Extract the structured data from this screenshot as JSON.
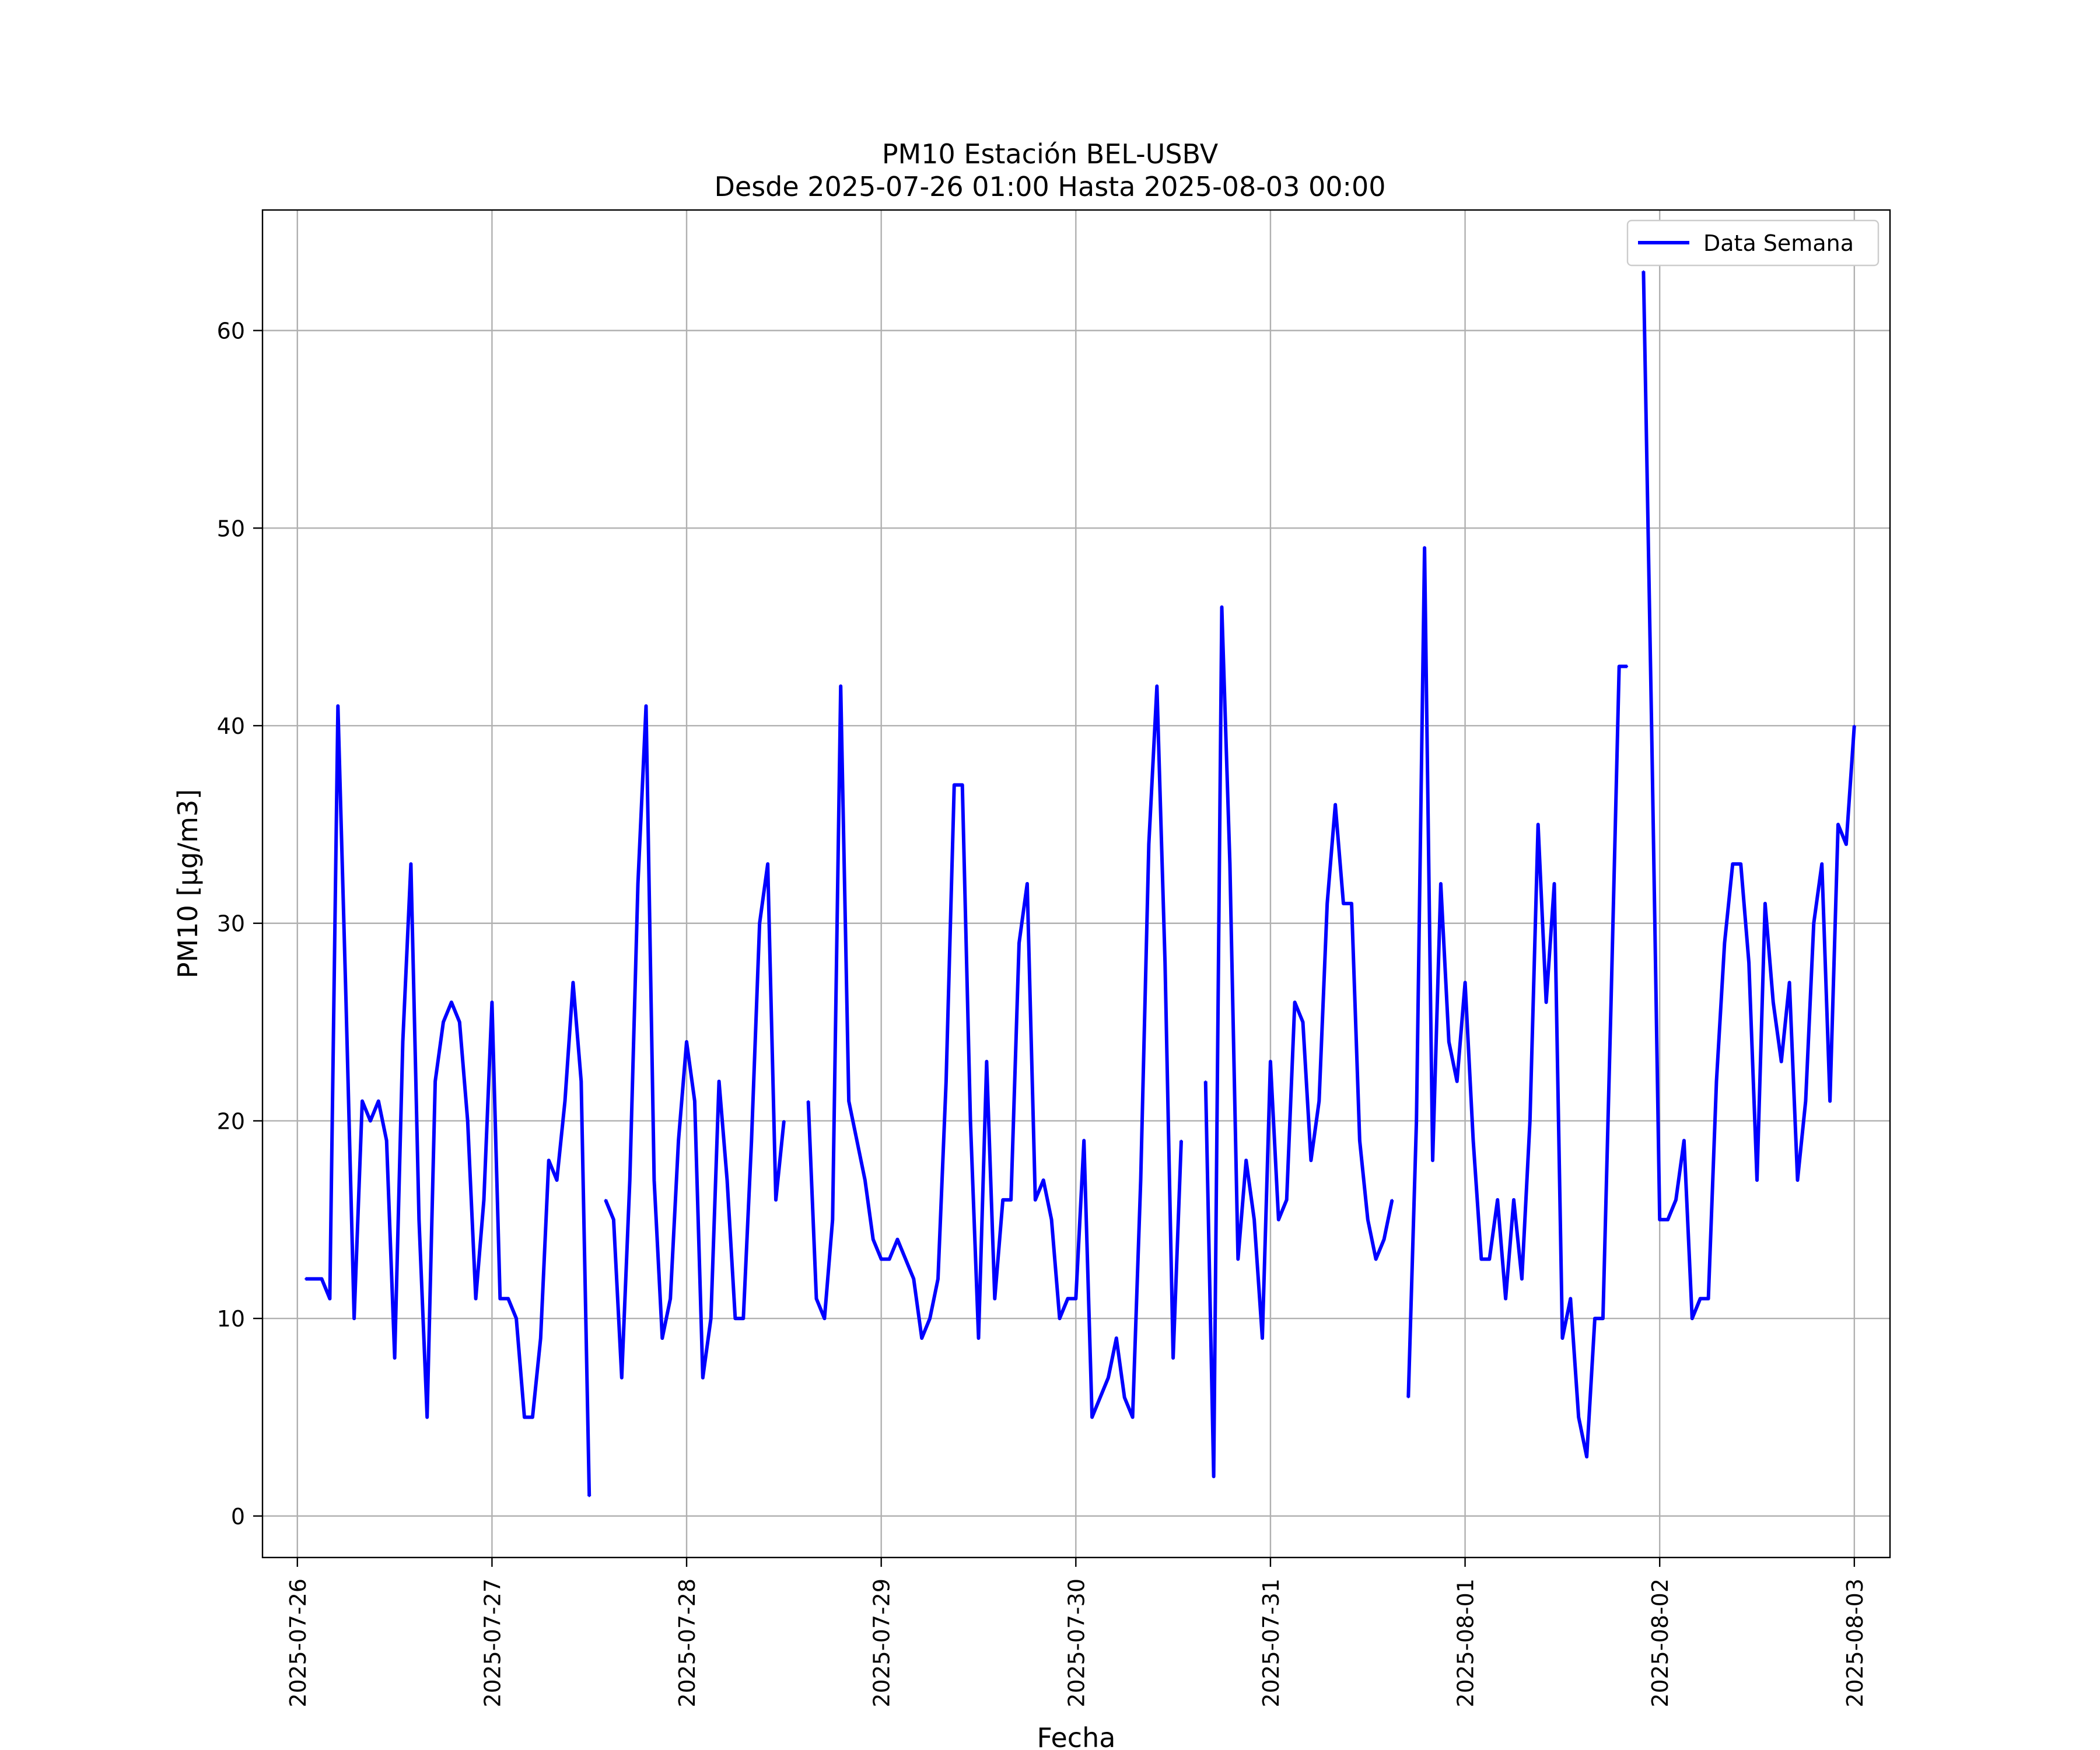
{
  "chart_data": {
    "type": "line",
    "title": "PM10 Estación BEL-USBV",
    "subtitle": "Desde 2025-07-26 01:00 Hasta 2025-08-03 00:00",
    "xlabel": "Fecha",
    "ylabel": "PM10 [μg/m3]",
    "xlim": [
      "2025-07-25 19:42",
      "2025-08-03 04:24"
    ],
    "ylim": [
      -2.1,
      66.1
    ],
    "x_ticks": [
      "2025-07-26",
      "2025-07-27",
      "2025-07-28",
      "2025-07-29",
      "2025-07-30",
      "2025-07-31",
      "2025-08-01",
      "2025-08-02",
      "2025-08-03"
    ],
    "y_ticks": [
      0,
      10,
      20,
      30,
      40,
      50,
      60
    ],
    "grid": true,
    "legend": {
      "position": "top-right",
      "entries": [
        "Data Semana"
      ]
    },
    "series": [
      {
        "name": "Data Semana",
        "color": "#0000ff",
        "points": [
          [
            "2025-07-26 01:00",
            12
          ],
          [
            "2025-07-26 02:00",
            12
          ],
          [
            "2025-07-26 03:00",
            12
          ],
          [
            "2025-07-26 04:00",
            11
          ],
          [
            "2025-07-26 05:00",
            41
          ],
          [
            "2025-07-26 06:00",
            26
          ],
          [
            "2025-07-26 07:00",
            10
          ],
          [
            "2025-07-26 08:00",
            21
          ],
          [
            "2025-07-26 09:00",
            20
          ],
          [
            "2025-07-26 10:00",
            21
          ],
          [
            "2025-07-26 11:00",
            19
          ],
          [
            "2025-07-26 12:00",
            8
          ],
          [
            "2025-07-26 13:00",
            24
          ],
          [
            "2025-07-26 14:00",
            33
          ],
          [
            "2025-07-26 15:00",
            15
          ],
          [
            "2025-07-26 16:00",
            5
          ],
          [
            "2025-07-26 17:00",
            22
          ],
          [
            "2025-07-26 18:00",
            25
          ],
          [
            "2025-07-26 19:00",
            26
          ],
          [
            "2025-07-26 20:00",
            25
          ],
          [
            "2025-07-26 21:00",
            20
          ],
          [
            "2025-07-26 22:00",
            11
          ],
          [
            "2025-07-26 23:00",
            16
          ],
          [
            "2025-07-27 00:00",
            26
          ],
          [
            "2025-07-27 01:00",
            11
          ],
          [
            "2025-07-27 02:00",
            11
          ],
          [
            "2025-07-27 03:00",
            10
          ],
          [
            "2025-07-27 04:00",
            5
          ],
          [
            "2025-07-27 05:00",
            5
          ],
          [
            "2025-07-27 06:00",
            9
          ],
          [
            "2025-07-27 07:00",
            18
          ],
          [
            "2025-07-27 08:00",
            17
          ],
          [
            "2025-07-27 09:00",
            21
          ],
          [
            "2025-07-27 10:00",
            27
          ],
          [
            "2025-07-27 11:00",
            22
          ],
          [
            "2025-07-27 12:00",
            1
          ],
          [
            "2025-07-27 13:00",
            null
          ],
          [
            "2025-07-27 14:00",
            16
          ],
          [
            "2025-07-27 15:00",
            15
          ],
          [
            "2025-07-27 16:00",
            7
          ],
          [
            "2025-07-27 17:00",
            17
          ],
          [
            "2025-07-27 18:00",
            32
          ],
          [
            "2025-07-27 19:00",
            41
          ],
          [
            "2025-07-27 20:00",
            17
          ],
          [
            "2025-07-27 21:00",
            9
          ],
          [
            "2025-07-27 22:00",
            11
          ],
          [
            "2025-07-27 23:00",
            19
          ],
          [
            "2025-07-28 00:00",
            24
          ],
          [
            "2025-07-28 01:00",
            21
          ],
          [
            "2025-07-28 02:00",
            7
          ],
          [
            "2025-07-28 03:00",
            10
          ],
          [
            "2025-07-28 04:00",
            22
          ],
          [
            "2025-07-28 05:00",
            17
          ],
          [
            "2025-07-28 06:00",
            10
          ],
          [
            "2025-07-28 07:00",
            10
          ],
          [
            "2025-07-28 08:00",
            19
          ],
          [
            "2025-07-28 09:00",
            30
          ],
          [
            "2025-07-28 10:00",
            33
          ],
          [
            "2025-07-28 11:00",
            16
          ],
          [
            "2025-07-28 12:00",
            20
          ],
          [
            "2025-07-28 13:00",
            null
          ],
          [
            "2025-07-28 14:00",
            null
          ],
          [
            "2025-07-28 15:00",
            21
          ],
          [
            "2025-07-28 16:00",
            11
          ],
          [
            "2025-07-28 17:00",
            10
          ],
          [
            "2025-07-28 18:00",
            15
          ],
          [
            "2025-07-28 19:00",
            42
          ],
          [
            "2025-07-28 20:00",
            21
          ],
          [
            "2025-07-28 21:00",
            19
          ],
          [
            "2025-07-28 22:00",
            17
          ],
          [
            "2025-07-28 23:00",
            14
          ],
          [
            "2025-07-29 00:00",
            13
          ],
          [
            "2025-07-29 01:00",
            13
          ],
          [
            "2025-07-29 02:00",
            14
          ],
          [
            "2025-07-29 03:00",
            13
          ],
          [
            "2025-07-29 04:00",
            12
          ],
          [
            "2025-07-29 05:00",
            9
          ],
          [
            "2025-07-29 06:00",
            10
          ],
          [
            "2025-07-29 07:00",
            12
          ],
          [
            "2025-07-29 08:00",
            22
          ],
          [
            "2025-07-29 09:00",
            37
          ],
          [
            "2025-07-29 10:00",
            37
          ],
          [
            "2025-07-29 11:00",
            20
          ],
          [
            "2025-07-29 12:00",
            9
          ],
          [
            "2025-07-29 13:00",
            23
          ],
          [
            "2025-07-29 14:00",
            11
          ],
          [
            "2025-07-29 15:00",
            16
          ],
          [
            "2025-07-29 16:00",
            16
          ],
          [
            "2025-07-29 17:00",
            29
          ],
          [
            "2025-07-29 18:00",
            32
          ],
          [
            "2025-07-29 19:00",
            16
          ],
          [
            "2025-07-29 20:00",
            17
          ],
          [
            "2025-07-29 21:00",
            15
          ],
          [
            "2025-07-29 22:00",
            10
          ],
          [
            "2025-07-29 23:00",
            11
          ],
          [
            "2025-07-30 00:00",
            11
          ],
          [
            "2025-07-30 01:00",
            19
          ],
          [
            "2025-07-30 02:00",
            5
          ],
          [
            "2025-07-30 03:00",
            6
          ],
          [
            "2025-07-30 04:00",
            7
          ],
          [
            "2025-07-30 05:00",
            9
          ],
          [
            "2025-07-30 06:00",
            6
          ],
          [
            "2025-07-30 07:00",
            5
          ],
          [
            "2025-07-30 08:00",
            17
          ],
          [
            "2025-07-30 09:00",
            34
          ],
          [
            "2025-07-30 10:00",
            42
          ],
          [
            "2025-07-30 11:00",
            28
          ],
          [
            "2025-07-30 12:00",
            8
          ],
          [
            "2025-07-30 13:00",
            19
          ],
          [
            "2025-07-30 14:00",
            null
          ],
          [
            "2025-07-30 15:00",
            null
          ],
          [
            "2025-07-30 16:00",
            22
          ],
          [
            "2025-07-30 17:00",
            2
          ],
          [
            "2025-07-30 18:00",
            46
          ],
          [
            "2025-07-30 19:00",
            33
          ],
          [
            "2025-07-30 20:00",
            13
          ],
          [
            "2025-07-30 21:00",
            18
          ],
          [
            "2025-07-30 22:00",
            15
          ],
          [
            "2025-07-30 23:00",
            9
          ],
          [
            "2025-07-31 00:00",
            23
          ],
          [
            "2025-07-31 01:00",
            15
          ],
          [
            "2025-07-31 02:00",
            16
          ],
          [
            "2025-07-31 03:00",
            26
          ],
          [
            "2025-07-31 04:00",
            25
          ],
          [
            "2025-07-31 05:00",
            18
          ],
          [
            "2025-07-31 06:00",
            21
          ],
          [
            "2025-07-31 07:00",
            31
          ],
          [
            "2025-07-31 08:00",
            36
          ],
          [
            "2025-07-31 09:00",
            31
          ],
          [
            "2025-07-31 10:00",
            31
          ],
          [
            "2025-07-31 11:00",
            19
          ],
          [
            "2025-07-31 12:00",
            15
          ],
          [
            "2025-07-31 13:00",
            13
          ],
          [
            "2025-07-31 14:00",
            14
          ],
          [
            "2025-07-31 15:00",
            16
          ],
          [
            "2025-07-31 16:00",
            null
          ],
          [
            "2025-07-31 17:00",
            6
          ],
          [
            "2025-07-31 18:00",
            20
          ],
          [
            "2025-07-31 19:00",
            49
          ],
          [
            "2025-07-31 20:00",
            18
          ],
          [
            "2025-07-31 21:00",
            32
          ],
          [
            "2025-07-31 22:00",
            24
          ],
          [
            "2025-07-31 23:00",
            22
          ],
          [
            "2025-08-01 00:00",
            27
          ],
          [
            "2025-08-01 01:00",
            19
          ],
          [
            "2025-08-01 02:00",
            13
          ],
          [
            "2025-08-01 03:00",
            13
          ],
          [
            "2025-08-01 04:00",
            16
          ],
          [
            "2025-08-01 05:00",
            11
          ],
          [
            "2025-08-01 06:00",
            16
          ],
          [
            "2025-08-01 07:00",
            12
          ],
          [
            "2025-08-01 08:00",
            20
          ],
          [
            "2025-08-01 09:00",
            35
          ],
          [
            "2025-08-01 10:00",
            26
          ],
          [
            "2025-08-01 11:00",
            32
          ],
          [
            "2025-08-01 12:00",
            9
          ],
          [
            "2025-08-01 13:00",
            11
          ],
          [
            "2025-08-01 14:00",
            5
          ],
          [
            "2025-08-01 15:00",
            3
          ],
          [
            "2025-08-01 16:00",
            10
          ],
          [
            "2025-08-01 17:00",
            10
          ],
          [
            "2025-08-01 18:00",
            26
          ],
          [
            "2025-08-01 19:00",
            43
          ],
          [
            "2025-08-01 20:00",
            43
          ],
          [
            "2025-08-01 21:00",
            null
          ],
          [
            "2025-08-01 22:00",
            63
          ],
          [
            "2025-08-01 23:00",
            40
          ],
          [
            "2025-08-02 00:00",
            15
          ],
          [
            "2025-08-02 01:00",
            15
          ],
          [
            "2025-08-02 02:00",
            16
          ],
          [
            "2025-08-02 03:00",
            19
          ],
          [
            "2025-08-02 04:00",
            10
          ],
          [
            "2025-08-02 05:00",
            11
          ],
          [
            "2025-08-02 06:00",
            11
          ],
          [
            "2025-08-02 07:00",
            22
          ],
          [
            "2025-08-02 08:00",
            29
          ],
          [
            "2025-08-02 09:00",
            33
          ],
          [
            "2025-08-02 10:00",
            33
          ],
          [
            "2025-08-02 11:00",
            28
          ],
          [
            "2025-08-02 12:00",
            17
          ],
          [
            "2025-08-02 13:00",
            31
          ],
          [
            "2025-08-02 14:00",
            26
          ],
          [
            "2025-08-02 15:00",
            23
          ],
          [
            "2025-08-02 16:00",
            27
          ],
          [
            "2025-08-02 17:00",
            17
          ],
          [
            "2025-08-02 18:00",
            21
          ],
          [
            "2025-08-02 19:00",
            30
          ],
          [
            "2025-08-02 20:00",
            33
          ],
          [
            "2025-08-02 21:00",
            21
          ],
          [
            "2025-08-02 22:00",
            35
          ],
          [
            "2025-08-02 23:00",
            34
          ],
          [
            "2025-08-03 00:00",
            40
          ]
        ]
      }
    ]
  }
}
